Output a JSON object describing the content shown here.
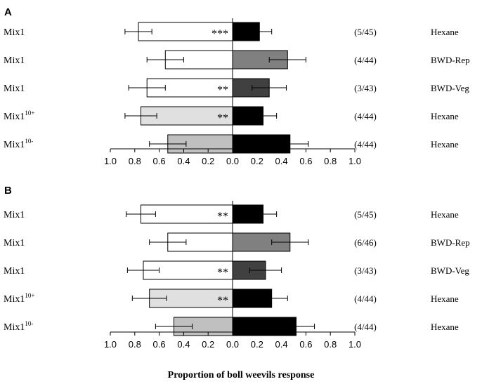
{
  "figure_xlabel": "Proportion of boll weevils response",
  "colors": {
    "white": "#ffffff",
    "light_gray": "#e0e0e0",
    "mid_gray": "#c0c0c0",
    "dark_gray_rep": "#808080",
    "dark_gray_veg": "#404040",
    "black": "#000000"
  },
  "chart_data": [
    {
      "type": "bar",
      "panel_label": "A",
      "orientation": "horizontal-diverging",
      "xlim": [
        -1.0,
        1.0
      ],
      "tick_labels": [
        "1.0",
        "0.8",
        "0.6",
        "0.4",
        "0.2",
        "0.0",
        "0.2",
        "0.4",
        "0.6",
        "0.8",
        "1.0"
      ],
      "rows": [
        {
          "left_label": "Mix1",
          "left_sup": "",
          "left_value": 0.77,
          "left_err": 0.11,
          "left_color": "white",
          "stars": "***",
          "right_value": 0.22,
          "right_err": 0.1,
          "right_color": "black",
          "count": "(5/45)",
          "control": "Hexane"
        },
        {
          "left_label": "Mix1",
          "left_sup": "",
          "left_value": 0.55,
          "left_err": 0.15,
          "left_color": "white",
          "stars": "",
          "right_value": 0.45,
          "right_err": 0.15,
          "right_color": "dark_gray_rep",
          "count": "(4/44)",
          "control": "BWD-Rep"
        },
        {
          "left_label": "Mix1",
          "left_sup": "",
          "left_value": 0.7,
          "left_err": 0.15,
          "left_color": "white",
          "stars": "**",
          "right_value": 0.3,
          "right_err": 0.14,
          "right_color": "dark_gray_veg",
          "count": "(3/43)",
          "control": "BWD-Veg"
        },
        {
          "left_label": "Mix1",
          "left_sup": "10+",
          "left_value": 0.75,
          "left_err": 0.13,
          "left_color": "light_gray",
          "stars": "**",
          "right_value": 0.25,
          "right_err": 0.11,
          "right_color": "black",
          "count": "(4/44)",
          "control": "Hexane"
        },
        {
          "left_label": "Mix1",
          "left_sup": "10-",
          "left_value": 0.53,
          "left_err": 0.15,
          "left_color": "mid_gray",
          "stars": "",
          "right_value": 0.47,
          "right_err": 0.15,
          "right_color": "black",
          "count": "(4/44)",
          "control": "Hexane"
        }
      ]
    },
    {
      "type": "bar",
      "panel_label": "B",
      "orientation": "horizontal-diverging",
      "xlim": [
        -1.0,
        1.0
      ],
      "tick_labels": [
        "1.0",
        "0.8",
        "0.6",
        "0.4",
        "0.2",
        "0.0",
        "0.2",
        "0.4",
        "0.6",
        "0.8",
        "1.0"
      ],
      "rows": [
        {
          "left_label": "Mix1",
          "left_sup": "",
          "left_value": 0.75,
          "left_err": 0.12,
          "left_color": "white",
          "stars": "**",
          "right_value": 0.25,
          "right_err": 0.11,
          "right_color": "black",
          "count": "(5/45)",
          "control": "Hexane"
        },
        {
          "left_label": "Mix1",
          "left_sup": "",
          "left_value": 0.53,
          "left_err": 0.15,
          "left_color": "white",
          "stars": "",
          "right_value": 0.47,
          "right_err": 0.15,
          "right_color": "dark_gray_rep",
          "count": "(6/46)",
          "control": "BWD-Rep"
        },
        {
          "left_label": "Mix1",
          "left_sup": "",
          "left_value": 0.73,
          "left_err": 0.13,
          "left_color": "white",
          "stars": "**",
          "right_value": 0.27,
          "right_err": 0.13,
          "right_color": "dark_gray_veg",
          "count": "(3/43)",
          "control": "BWD-Veg"
        },
        {
          "left_label": "Mix1",
          "left_sup": "10+",
          "left_value": 0.68,
          "left_err": 0.14,
          "left_color": "light_gray",
          "stars": "**",
          "right_value": 0.32,
          "right_err": 0.13,
          "right_color": "black",
          "count": "(4/44)",
          "control": "Hexane"
        },
        {
          "left_label": "Mix1",
          "left_sup": "10-",
          "left_value": 0.48,
          "left_err": 0.15,
          "left_color": "mid_gray",
          "stars": "",
          "right_value": 0.52,
          "right_err": 0.15,
          "right_color": "black",
          "count": "(4/44)",
          "control": "Hexane"
        }
      ]
    }
  ]
}
